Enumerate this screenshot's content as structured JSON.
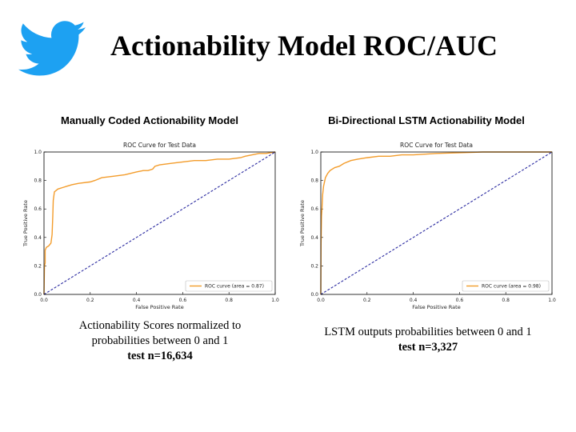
{
  "slide": {
    "title": "Actionability Model ROC/AUC",
    "logo_icon": "twitter-bird-icon",
    "brand_color": "#1DA1F2"
  },
  "panels": [
    {
      "heading": "Manually Coded Actionability Model",
      "caption_line1": "Actionability Scores normalized to",
      "caption_line2": "probabilities between 0 and 1",
      "caption_line3": "test n=16,634"
    },
    {
      "heading": "Bi-Directional LSTM Actionability Model",
      "caption_line1": "LSTM outputs probabilities between 0 and 1",
      "caption_line2": "test n=3,327"
    }
  ],
  "chart_data": [
    {
      "type": "line",
      "title": "ROC Curve for Test Data",
      "xlabel": "False Positive Rate",
      "ylabel": "True Positive Rate",
      "xlim": [
        0,
        1
      ],
      "ylim": [
        0,
        1
      ],
      "xticks": [
        "0.0",
        "0.2",
        "0.4",
        "0.6",
        "0.8",
        "1.0"
      ],
      "yticks": [
        "0.0",
        "0.2",
        "0.4",
        "0.6",
        "0.8",
        "1.0"
      ],
      "grid": false,
      "legend_position": "bottom-right",
      "series": [
        {
          "name": "ROC curve (area = 0.87)",
          "color": "#F39C2B",
          "style": "solid",
          "x": [
            0,
            0.002,
            0.005,
            0.005,
            0.01,
            0.02,
            0.03,
            0.035,
            0.038,
            0.04,
            0.045,
            0.06,
            0.08,
            0.1,
            0.12,
            0.15,
            0.2,
            0.22,
            0.25,
            0.3,
            0.35,
            0.4,
            0.43,
            0.45,
            0.47,
            0.48,
            0.5,
            0.55,
            0.6,
            0.65,
            0.7,
            0.75,
            0.8,
            0.85,
            0.87,
            0.9,
            0.93,
            0.96,
            1.0
          ],
          "y": [
            0,
            0.2,
            0.22,
            0.31,
            0.33,
            0.34,
            0.36,
            0.42,
            0.55,
            0.66,
            0.72,
            0.74,
            0.75,
            0.76,
            0.77,
            0.78,
            0.79,
            0.8,
            0.82,
            0.83,
            0.84,
            0.86,
            0.87,
            0.87,
            0.88,
            0.9,
            0.91,
            0.92,
            0.93,
            0.94,
            0.94,
            0.95,
            0.95,
            0.96,
            0.97,
            0.98,
            0.99,
            0.99,
            1.0
          ]
        },
        {
          "name": "",
          "color": "#2A2AA0",
          "style": "dashed",
          "x": [
            0,
            1
          ],
          "y": [
            0,
            1
          ]
        }
      ]
    },
    {
      "type": "line",
      "title": "ROC Curve for Test Data",
      "xlabel": "False Positive Rate",
      "ylabel": "True Positive Rate",
      "xlim": [
        0,
        1
      ],
      "ylim": [
        0,
        1
      ],
      "xticks": [
        "0.0",
        "0.2",
        "0.4",
        "0.6",
        "0.8",
        "1.0"
      ],
      "yticks": [
        "0.0",
        "0.2",
        "0.4",
        "0.6",
        "0.8",
        "1.0"
      ],
      "grid": false,
      "legend_position": "bottom-right",
      "series": [
        {
          "name": "ROC curve (area = 0.98)",
          "color": "#F39C2B",
          "style": "solid",
          "x": [
            0,
            0.001,
            0.003,
            0.005,
            0.008,
            0.012,
            0.02,
            0.03,
            0.04,
            0.06,
            0.08,
            0.1,
            0.13,
            0.16,
            0.2,
            0.25,
            0.3,
            0.35,
            0.4,
            0.5,
            0.6,
            0.7,
            0.8,
            0.9,
            1.0
          ],
          "y": [
            0,
            0.35,
            0.55,
            0.6,
            0.7,
            0.76,
            0.82,
            0.85,
            0.87,
            0.89,
            0.9,
            0.92,
            0.94,
            0.95,
            0.96,
            0.97,
            0.97,
            0.98,
            0.98,
            0.99,
            0.995,
            1.0,
            1.0,
            1.0,
            1.0
          ]
        },
        {
          "name": "",
          "color": "#2A2AA0",
          "style": "dashed",
          "x": [
            0,
            1
          ],
          "y": [
            0,
            1
          ]
        }
      ]
    }
  ]
}
